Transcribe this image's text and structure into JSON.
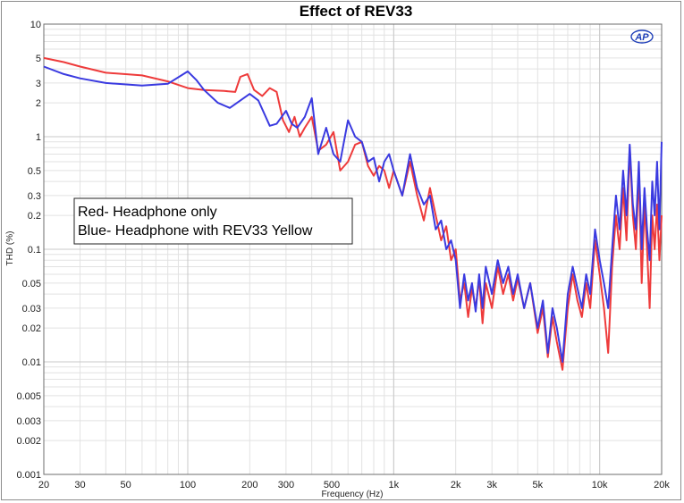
{
  "chart_data": {
    "type": "line",
    "title": "Effect of REV33",
    "xlabel": "Frequency (Hz)",
    "ylabel": "THD (%)",
    "x_scale": "log",
    "y_scale": "log",
    "xlim": [
      20,
      20000
    ],
    "ylim": [
      0.001,
      10
    ],
    "grid": true,
    "x_ticks": [
      {
        "v": 20,
        "label": "20"
      },
      {
        "v": 30,
        "label": "30"
      },
      {
        "v": 50,
        "label": "50"
      },
      {
        "v": 100,
        "label": "100"
      },
      {
        "v": 200,
        "label": "200"
      },
      {
        "v": 300,
        "label": "300"
      },
      {
        "v": 500,
        "label": "500"
      },
      {
        "v": 1000,
        "label": "1k"
      },
      {
        "v": 2000,
        "label": "2k"
      },
      {
        "v": 3000,
        "label": "3k"
      },
      {
        "v": 5000,
        "label": "5k"
      },
      {
        "v": 10000,
        "label": "10k"
      },
      {
        "v": 20000,
        "label": "20k"
      }
    ],
    "y_ticks": [
      {
        "v": 10,
        "label": "10"
      },
      {
        "v": 5,
        "label": "5"
      },
      {
        "v": 3,
        "label": "3"
      },
      {
        "v": 2,
        "label": "2"
      },
      {
        "v": 1,
        "label": "1"
      },
      {
        "v": 0.5,
        "label": "0.5"
      },
      {
        "v": 0.3,
        "label": "0.3"
      },
      {
        "v": 0.2,
        "label": "0.2"
      },
      {
        "v": 0.1,
        "label": "0.1"
      },
      {
        "v": 0.05,
        "label": "0.05"
      },
      {
        "v": 0.03,
        "label": "0.03"
      },
      {
        "v": 0.02,
        "label": "0.02"
      },
      {
        "v": 0.01,
        "label": "0.01"
      },
      {
        "v": 0.005,
        "label": "0.005"
      },
      {
        "v": 0.003,
        "label": "0.003"
      },
      {
        "v": 0.002,
        "label": "0.002"
      },
      {
        "v": 0.001,
        "label": "0.001"
      }
    ],
    "legend_lines": [
      "Red- Headphone only",
      "Blue- Headphone with REV33 Yellow"
    ],
    "legend_placement": "middle-left",
    "series": [
      {
        "color": "#ee3b3b",
        "points": [
          [
            20,
            5.0
          ],
          [
            25,
            4.6
          ],
          [
            30,
            4.2
          ],
          [
            40,
            3.7
          ],
          [
            60,
            3.5
          ],
          [
            80,
            3.1
          ],
          [
            100,
            2.7
          ],
          [
            120,
            2.6
          ],
          [
            150,
            2.55
          ],
          [
            170,
            2.5
          ],
          [
            180,
            3.4
          ],
          [
            195,
            3.6
          ],
          [
            210,
            2.6
          ],
          [
            230,
            2.3
          ],
          [
            250,
            2.7
          ],
          [
            270,
            2.5
          ],
          [
            290,
            1.4
          ],
          [
            310,
            1.1
          ],
          [
            330,
            1.5
          ],
          [
            350,
            1.0
          ],
          [
            370,
            1.2
          ],
          [
            400,
            1.5
          ],
          [
            430,
            0.75
          ],
          [
            470,
            0.85
          ],
          [
            510,
            1.1
          ],
          [
            550,
            0.5
          ],
          [
            600,
            0.6
          ],
          [
            650,
            0.85
          ],
          [
            700,
            0.9
          ],
          [
            750,
            0.55
          ],
          [
            800,
            0.45
          ],
          [
            850,
            0.55
          ],
          [
            900,
            0.5
          ],
          [
            950,
            0.35
          ],
          [
            1000,
            0.5
          ],
          [
            1100,
            0.3
          ],
          [
            1200,
            0.6
          ],
          [
            1300,
            0.3
          ],
          [
            1400,
            0.18
          ],
          [
            1500,
            0.35
          ],
          [
            1600,
            0.2
          ],
          [
            1700,
            0.12
          ],
          [
            1800,
            0.16
          ],
          [
            1900,
            0.08
          ],
          [
            2000,
            0.1
          ],
          [
            2100,
            0.035
          ],
          [
            2200,
            0.05
          ],
          [
            2300,
            0.025
          ],
          [
            2400,
            0.045
          ],
          [
            2500,
            0.03
          ],
          [
            2600,
            0.055
          ],
          [
            2700,
            0.022
          ],
          [
            2800,
            0.05
          ],
          [
            3000,
            0.03
          ],
          [
            3200,
            0.07
          ],
          [
            3400,
            0.04
          ],
          [
            3600,
            0.06
          ],
          [
            3800,
            0.035
          ],
          [
            4000,
            0.055
          ],
          [
            4300,
            0.03
          ],
          [
            4600,
            0.05
          ],
          [
            5000,
            0.018
          ],
          [
            5300,
            0.03
          ],
          [
            5600,
            0.011
          ],
          [
            5900,
            0.025
          ],
          [
            6200,
            0.015
          ],
          [
            6600,
            0.0085
          ],
          [
            7000,
            0.03
          ],
          [
            7400,
            0.06
          ],
          [
            7800,
            0.035
          ],
          [
            8200,
            0.025
          ],
          [
            8600,
            0.05
          ],
          [
            9000,
            0.03
          ],
          [
            9500,
            0.12
          ],
          [
            10000,
            0.06
          ],
          [
            10500,
            0.03
          ],
          [
            11000,
            0.012
          ],
          [
            11500,
            0.07
          ],
          [
            12000,
            0.2
          ],
          [
            12500,
            0.1
          ],
          [
            13000,
            0.35
          ],
          [
            13500,
            0.12
          ],
          [
            14000,
            0.8
          ],
          [
            14500,
            0.2
          ],
          [
            15000,
            0.1
          ],
          [
            15500,
            0.5
          ],
          [
            16000,
            0.05
          ],
          [
            16500,
            0.25
          ],
          [
            17000,
            0.1
          ],
          [
            17500,
            0.03
          ],
          [
            18000,
            0.2
          ],
          [
            18500,
            0.1
          ],
          [
            19000,
            0.25
          ],
          [
            19500,
            0.08
          ],
          [
            20000,
            0.2
          ]
        ]
      },
      {
        "color": "#3a3ae0",
        "points": [
          [
            20,
            4.2
          ],
          [
            25,
            3.6
          ],
          [
            30,
            3.3
          ],
          [
            40,
            3.0
          ],
          [
            60,
            2.85
          ],
          [
            80,
            2.95
          ],
          [
            100,
            3.8
          ],
          [
            110,
            3.2
          ],
          [
            120,
            2.6
          ],
          [
            140,
            2.0
          ],
          [
            160,
            1.8
          ],
          [
            200,
            2.4
          ],
          [
            220,
            2.1
          ],
          [
            250,
            1.25
          ],
          [
            270,
            1.3
          ],
          [
            300,
            1.7
          ],
          [
            320,
            1.3
          ],
          [
            340,
            1.2
          ],
          [
            370,
            1.5
          ],
          [
            400,
            2.2
          ],
          [
            430,
            0.7
          ],
          [
            470,
            1.2
          ],
          [
            510,
            0.7
          ],
          [
            550,
            0.6
          ],
          [
            600,
            1.4
          ],
          [
            650,
            1.0
          ],
          [
            700,
            0.9
          ],
          [
            750,
            0.6
          ],
          [
            800,
            0.65
          ],
          [
            850,
            0.4
          ],
          [
            900,
            0.6
          ],
          [
            950,
            0.7
          ],
          [
            1000,
            0.5
          ],
          [
            1100,
            0.3
          ],
          [
            1200,
            0.7
          ],
          [
            1300,
            0.35
          ],
          [
            1400,
            0.25
          ],
          [
            1500,
            0.3
          ],
          [
            1600,
            0.15
          ],
          [
            1700,
            0.18
          ],
          [
            1800,
            0.1
          ],
          [
            1900,
            0.12
          ],
          [
            2000,
            0.08
          ],
          [
            2100,
            0.03
          ],
          [
            2200,
            0.06
          ],
          [
            2300,
            0.035
          ],
          [
            2400,
            0.05
          ],
          [
            2500,
            0.028
          ],
          [
            2600,
            0.06
          ],
          [
            2700,
            0.03
          ],
          [
            2800,
            0.07
          ],
          [
            3000,
            0.04
          ],
          [
            3200,
            0.08
          ],
          [
            3400,
            0.05
          ],
          [
            3600,
            0.07
          ],
          [
            3800,
            0.04
          ],
          [
            4000,
            0.06
          ],
          [
            4300,
            0.03
          ],
          [
            4600,
            0.05
          ],
          [
            5000,
            0.02
          ],
          [
            5300,
            0.035
          ],
          [
            5600,
            0.012
          ],
          [
            5900,
            0.03
          ],
          [
            6200,
            0.02
          ],
          [
            6600,
            0.01
          ],
          [
            7000,
            0.04
          ],
          [
            7400,
            0.07
          ],
          [
            7800,
            0.045
          ],
          [
            8200,
            0.03
          ],
          [
            8600,
            0.06
          ],
          [
            9000,
            0.04
          ],
          [
            9500,
            0.15
          ],
          [
            10000,
            0.08
          ],
          [
            10500,
            0.05
          ],
          [
            11000,
            0.03
          ],
          [
            11500,
            0.1
          ],
          [
            12000,
            0.3
          ],
          [
            12500,
            0.15
          ],
          [
            13000,
            0.5
          ],
          [
            13500,
            0.2
          ],
          [
            14000,
            0.85
          ],
          [
            14500,
            0.25
          ],
          [
            15000,
            0.15
          ],
          [
            15500,
            0.6
          ],
          [
            16000,
            0.1
          ],
          [
            16500,
            0.35
          ],
          [
            17000,
            0.15
          ],
          [
            17500,
            0.08
          ],
          [
            18000,
            0.4
          ],
          [
            18500,
            0.2
          ],
          [
            19000,
            0.6
          ],
          [
            19500,
            0.15
          ],
          [
            20000,
            0.9
          ]
        ]
      }
    ]
  },
  "logo": {
    "text": "AP"
  }
}
